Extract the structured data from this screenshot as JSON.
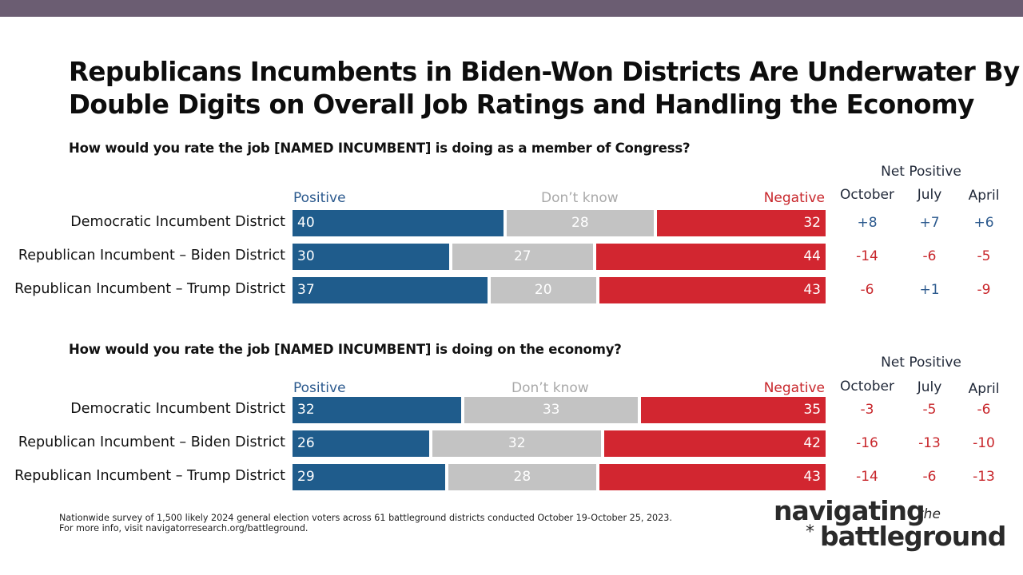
{
  "title": "Republicans Incumbents in Biden-Won Districts Are Underwater By Double Digits on Overall Job Ratings and Handling the Economy",
  "colors": {
    "positive": "#1f5c8c",
    "dont_know": "#c3c3c3",
    "negative": "#d22630",
    "net_positive_text": "#2c5a8e",
    "net_negative_text": "#c8262b",
    "top_bar": "#6b5d72"
  },
  "legend": {
    "positive": "Positive",
    "dont_know": "Don’t know",
    "negative": "Negative"
  },
  "net_header": "Net Positive",
  "periods": [
    "October",
    "July",
    "April"
  ],
  "chart_data": [
    {
      "type": "bar",
      "stacked": true,
      "orientation": "horizontal",
      "title": "How would you rate the job [NAMED INCUMBENT] is doing as a member of Congress?",
      "categories": [
        "Democratic Incumbent District",
        "Republican Incumbent – Biden District",
        "Republican Incumbent – Trump District"
      ],
      "series": [
        {
          "name": "Positive",
          "values": [
            40,
            30,
            37
          ]
        },
        {
          "name": "Don’t know",
          "values": [
            28,
            27,
            20
          ]
        },
        {
          "name": "Negative",
          "values": [
            32,
            44,
            43
          ]
        }
      ],
      "net_positive": {
        "October": [
          "+8",
          "-14",
          "-6"
        ],
        "July": [
          "+7",
          "-6",
          "+1"
        ],
        "April": [
          "+6",
          "-5",
          "-9"
        ]
      }
    },
    {
      "type": "bar",
      "stacked": true,
      "orientation": "horizontal",
      "title": "How would you rate the job [NAMED INCUMBENT] is doing on the economy?",
      "categories": [
        "Democratic Incumbent District",
        "Republican Incumbent – Biden District",
        "Republican Incumbent – Trump District"
      ],
      "series": [
        {
          "name": "Positive",
          "values": [
            32,
            26,
            29
          ]
        },
        {
          "name": "Don’t know",
          "values": [
            33,
            32,
            28
          ]
        },
        {
          "name": "Negative",
          "values": [
            35,
            42,
            43
          ]
        }
      ],
      "net_positive": {
        "October": [
          "-3",
          "-16",
          "-14"
        ],
        "July": [
          "-5",
          "-13",
          "-6"
        ],
        "April": [
          "-6",
          "-10",
          "-13"
        ]
      }
    }
  ],
  "footnote": {
    "line1": "Nationwide survey of 1,500 likely 2024 general election voters across 61 battleground districts conducted October 19-October 25, 2023.",
    "line2": "For more info, visit navigatorresearch.org/battleground."
  },
  "logo": {
    "word1": "navigating",
    "word2": "the",
    "word3": "battleground"
  }
}
